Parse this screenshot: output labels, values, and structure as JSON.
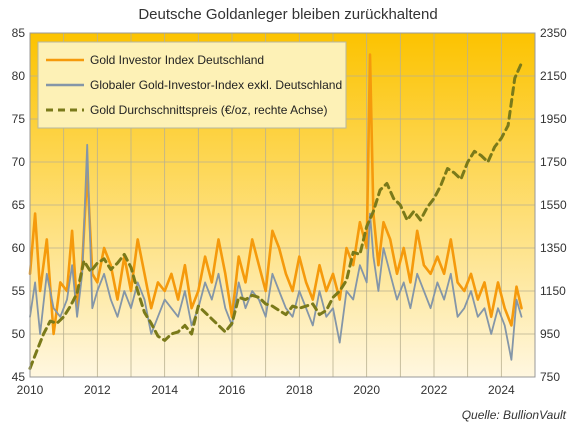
{
  "chart_data": {
    "type": "line",
    "title": "Deutsche Goldanleger bleiben zurückhaltend",
    "x_ticks": [
      "2010",
      "2012",
      "2014",
      "2016",
      "2018",
      "2020",
      "2022",
      "2024"
    ],
    "x_range": [
      2010,
      2025
    ],
    "y_left_ticks": [
      "45",
      "50",
      "55",
      "60",
      "65",
      "70",
      "75",
      "80",
      "85"
    ],
    "y_left_range": [
      45,
      85
    ],
    "y_right_ticks": [
      "750",
      "950",
      "1150",
      "1350",
      "1550",
      "1750",
      "1950",
      "2150",
      "2350"
    ],
    "y_right_range": [
      750,
      2350
    ],
    "grid": true,
    "legend_position": "top-left",
    "source": "Quelle:  BullionVault",
    "series": [
      {
        "name": "Gold Investor Index Deutschland",
        "axis": "left",
        "color": "#f59a0c",
        "style": "solid",
        "x": [
          2010.0,
          2010.15,
          2010.3,
          2010.5,
          2010.7,
          2010.9,
          2011.1,
          2011.25,
          2011.4,
          2011.55,
          2011.7,
          2011.85,
          2012.0,
          2012.2,
          2012.4,
          2012.6,
          2012.8,
          2013.0,
          2013.2,
          2013.4,
          2013.6,
          2013.8,
          2014.0,
          2014.2,
          2014.4,
          2014.6,
          2014.8,
          2015.0,
          2015.2,
          2015.4,
          2015.6,
          2015.8,
          2016.0,
          2016.2,
          2016.4,
          2016.6,
          2016.8,
          2017.0,
          2017.2,
          2017.4,
          2017.6,
          2017.8,
          2018.0,
          2018.2,
          2018.4,
          2018.6,
          2018.8,
          2019.0,
          2019.2,
          2019.4,
          2019.6,
          2019.8,
          2020.0,
          2020.1,
          2020.2,
          2020.35,
          2020.5,
          2020.7,
          2020.9,
          2021.1,
          2021.3,
          2021.5,
          2021.7,
          2021.9,
          2022.1,
          2022.3,
          2022.5,
          2022.7,
          2022.9,
          2023.1,
          2023.3,
          2023.5,
          2023.7,
          2023.9,
          2024.1,
          2024.3,
          2024.45,
          2024.6
        ],
        "values": [
          57,
          64,
          55,
          61,
          50,
          56,
          55,
          62,
          53,
          58,
          69,
          57,
          56,
          60,
          58,
          54,
          59,
          55,
          61,
          57,
          53,
          56,
          55,
          57,
          54,
          58,
          53,
          55,
          59,
          56,
          61,
          57,
          52,
          59,
          56,
          61,
          58,
          55,
          62,
          60,
          57,
          55,
          59,
          56,
          54,
          58,
          55,
          57,
          54,
          60,
          58,
          63,
          60,
          82.5,
          64,
          58,
          63,
          61,
          57,
          60,
          56,
          62,
          58,
          57,
          59,
          57,
          61,
          56,
          55,
          57,
          54,
          56,
          52,
          56,
          53,
          51,
          55.5,
          53
        ]
      },
      {
        "name": "Globaler Gold-Investor-Index exkl. Deutschland",
        "axis": "left",
        "color": "#8496a8",
        "style": "solid",
        "x": [
          2010.0,
          2010.15,
          2010.3,
          2010.5,
          2010.7,
          2010.9,
          2011.1,
          2011.25,
          2011.4,
          2011.55,
          2011.7,
          2011.85,
          2012.0,
          2012.2,
          2012.4,
          2012.6,
          2012.8,
          2013.0,
          2013.2,
          2013.4,
          2013.6,
          2013.8,
          2014.0,
          2014.2,
          2014.4,
          2014.6,
          2014.8,
          2015.0,
          2015.2,
          2015.4,
          2015.6,
          2015.8,
          2016.0,
          2016.2,
          2016.4,
          2016.6,
          2016.8,
          2017.0,
          2017.2,
          2017.4,
          2017.6,
          2017.8,
          2018.0,
          2018.2,
          2018.4,
          2018.6,
          2018.8,
          2019.0,
          2019.2,
          2019.4,
          2019.6,
          2019.8,
          2020.0,
          2020.1,
          2020.2,
          2020.35,
          2020.5,
          2020.7,
          2020.9,
          2021.1,
          2021.3,
          2021.5,
          2021.7,
          2021.9,
          2022.1,
          2022.3,
          2022.5,
          2022.7,
          2022.9,
          2023.1,
          2023.3,
          2023.5,
          2023.7,
          2023.9,
          2024.1,
          2024.3,
          2024.45,
          2024.6
        ],
        "values": [
          52,
          56,
          50,
          57,
          53,
          52,
          54,
          58,
          52,
          57,
          72,
          53,
          55,
          57,
          54,
          52,
          55,
          53,
          56,
          54,
          50,
          52,
          54,
          53,
          52,
          55,
          51,
          53,
          56,
          54,
          57,
          53,
          51,
          56,
          53,
          55,
          54,
          52,
          57,
          55,
          53,
          52,
          55,
          53,
          51,
          55,
          52,
          53,
          49,
          55,
          54,
          58,
          56,
          64,
          59,
          55,
          60,
          57,
          54,
          56,
          53,
          57,
          55,
          53,
          56,
          54,
          57,
          52,
          53,
          55,
          52,
          53,
          50,
          53,
          51,
          47,
          54,
          52
        ]
      },
      {
        "name": "Gold Durchschnittspreis (€/oz, rechte Achse)",
        "axis": "right",
        "color": "#7a7a1a",
        "style": "dashed",
        "x": [
          2010.0,
          2010.2,
          2010.4,
          2010.6,
          2010.8,
          2011.0,
          2011.2,
          2011.4,
          2011.6,
          2011.8,
          2012.0,
          2012.2,
          2012.4,
          2012.6,
          2012.8,
          2013.0,
          2013.2,
          2013.4,
          2013.6,
          2013.8,
          2014.0,
          2014.2,
          2014.4,
          2014.6,
          2014.8,
          2015.0,
          2015.2,
          2015.4,
          2015.6,
          2015.8,
          2016.0,
          2016.2,
          2016.4,
          2016.6,
          2016.8,
          2017.0,
          2017.2,
          2017.4,
          2017.6,
          2017.8,
          2018.0,
          2018.2,
          2018.4,
          2018.6,
          2018.8,
          2019.0,
          2019.2,
          2019.4,
          2019.6,
          2019.8,
          2020.0,
          2020.2,
          2020.4,
          2020.6,
          2020.8,
          2021.0,
          2021.2,
          2021.4,
          2021.6,
          2021.8,
          2022.0,
          2022.2,
          2022.4,
          2022.6,
          2022.8,
          2023.0,
          2023.2,
          2023.4,
          2023.6,
          2023.8,
          2024.0,
          2024.2,
          2024.4,
          2024.6
        ],
        "values": [
          790,
          870,
          950,
          1010,
          1000,
          1030,
          1080,
          1140,
          1290,
          1240,
          1280,
          1300,
          1250,
          1280,
          1320,
          1260,
          1150,
          1050,
          1000,
          940,
          920,
          950,
          960,
          990,
          950,
          1080,
          1050,
          1020,
          990,
          960,
          1000,
          1120,
          1110,
          1130,
          1120,
          1090,
          1080,
          1060,
          1040,
          1080,
          1070,
          1080,
          1090,
          1040,
          1060,
          1120,
          1150,
          1200,
          1330,
          1320,
          1450,
          1520,
          1620,
          1650,
          1580,
          1550,
          1480,
          1520,
          1480,
          1540,
          1580,
          1640,
          1720,
          1700,
          1670,
          1750,
          1800,
          1780,
          1750,
          1820,
          1860,
          1920,
          2140,
          2210
        ]
      }
    ]
  }
}
